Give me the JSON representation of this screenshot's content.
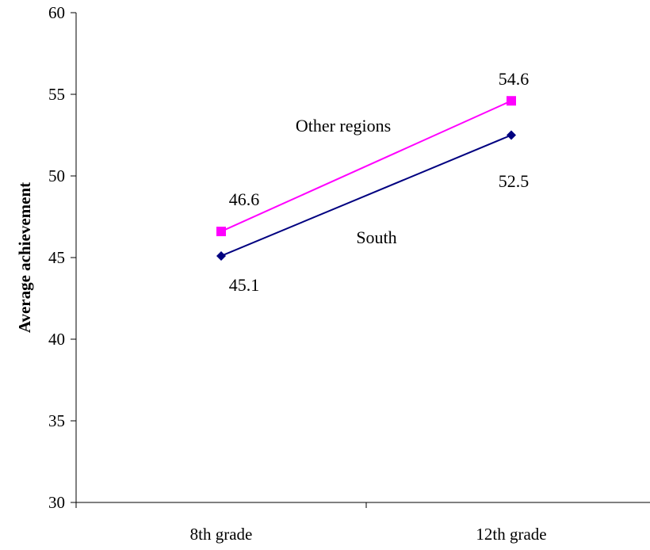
{
  "chart_data": {
    "type": "line",
    "title": "",
    "xlabel": "",
    "ylabel": "Average achievement",
    "categories": [
      "8th grade",
      "12th grade"
    ],
    "ylim": [
      30,
      60
    ],
    "yticks": [
      30,
      35,
      40,
      45,
      50,
      55,
      60
    ],
    "grid": false,
    "legend": "none",
    "series": [
      {
        "name": "Other regions",
        "values": [
          46.6,
          54.6
        ],
        "color": "#ff00ff",
        "marker": "square",
        "labels": [
          "46.6",
          "54.6"
        ]
      },
      {
        "name": "South",
        "values": [
          45.1,
          52.5
        ],
        "color": "#000080",
        "marker": "diamond",
        "labels": [
          "45.1",
          "52.5"
        ]
      }
    ]
  }
}
